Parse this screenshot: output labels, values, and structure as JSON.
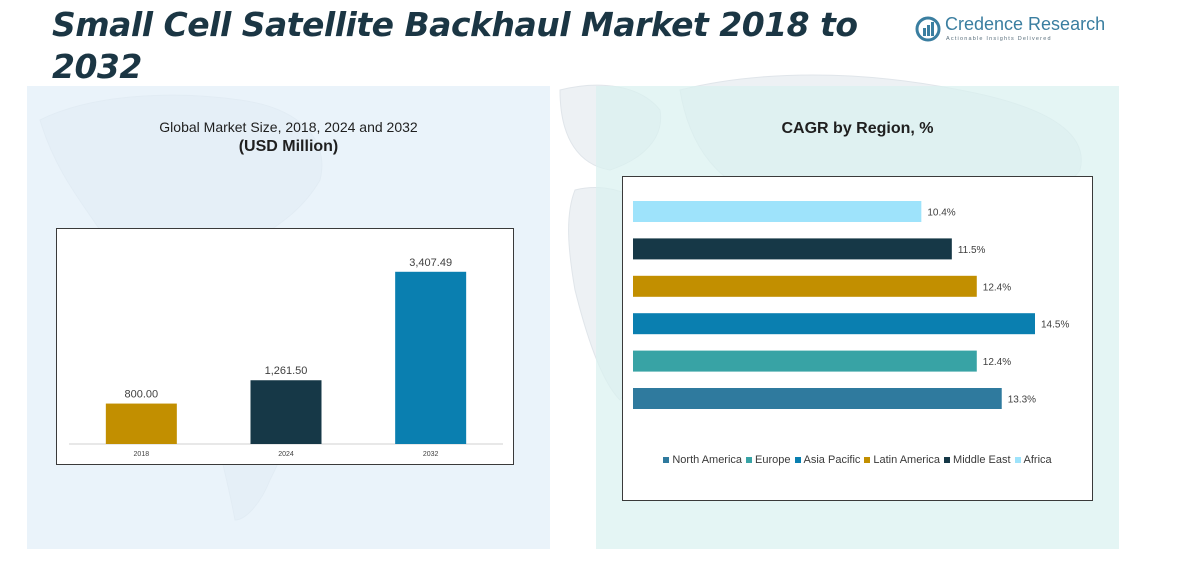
{
  "header": {
    "title": "Small Cell Satellite Backhaul Market 2018 to 2032"
  },
  "logo": {
    "name": "Credence Research",
    "tagline": "Actionable Insights Delivered",
    "icon": "credence-logo-icon"
  },
  "colors": {
    "title": "#1b3644",
    "north_america": "#2f7a9e",
    "europe": "#38a3a5",
    "asia_pacific": "#0a7fb0",
    "latin_america": "#c28f00",
    "middle_east": "#163847",
    "africa": "#9ee3fb"
  },
  "left_panel": {
    "title": "Global Market Size, 2018, 2024 and 2032",
    "unit": "(USD Million)"
  },
  "right_panel": {
    "title": "CAGR by Region, %"
  },
  "chart_data": [
    {
      "type": "bar",
      "title": "Global Market Size, 2018, 2024 and 2032",
      "ylabel": "(USD Million)",
      "categories": [
        "2018",
        "2024",
        "2032"
      ],
      "values": [
        800.0,
        1261.5,
        3407.49
      ],
      "value_labels": [
        "800.00",
        "1,261.50",
        "3,407.49"
      ],
      "bar_colors": [
        "#c28f00",
        "#163847",
        "#0a7fb0"
      ],
      "ylim": [
        0,
        3700
      ],
      "grid": false
    },
    {
      "type": "bar",
      "orientation": "horizontal",
      "title": "CAGR by Region, %",
      "categories": [
        "North America",
        "Europe",
        "Asia Pacific",
        "Latin America",
        "Middle East",
        "Africa"
      ],
      "values": [
        13.3,
        12.4,
        14.5,
        12.4,
        11.5,
        10.4
      ],
      "value_labels": [
        "13.3%",
        "12.4%",
        "14.5%",
        "12.4%",
        "11.5%",
        "10.4%"
      ],
      "bar_colors": [
        "#2f7a9e",
        "#38a3a5",
        "#0a7fb0",
        "#c28f00",
        "#163847",
        "#9ee3fb"
      ],
      "xlim": [
        0,
        14.5
      ],
      "legend": "bottom",
      "grid": false
    }
  ]
}
